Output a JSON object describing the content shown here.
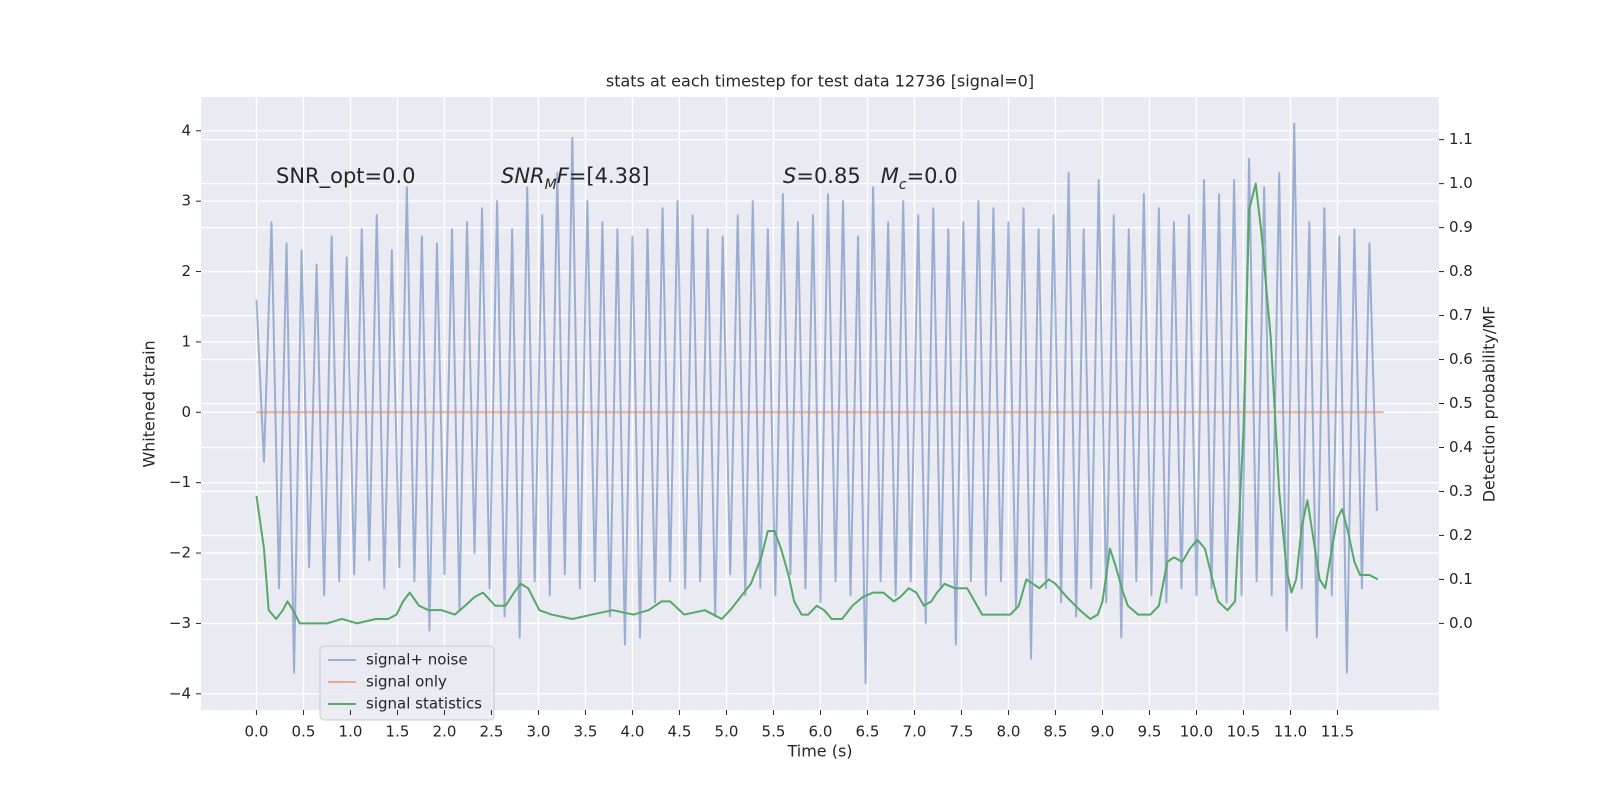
{
  "chart_data": {
    "type": "line",
    "title": "stats at each timestep for test data 12736 [signal=0]",
    "xlabel": "Time (s)",
    "ylabel": "Whitened strain",
    "y2label": "Detection probability/MF",
    "annotations": [
      [
        {
          "text": "SNR_opt=0.0"
        }
      ],
      [
        {
          "text": "SNR",
          "italic": true
        },
        {
          "text": "M",
          "italic": true,
          "sub": true
        },
        {
          "text": "F",
          "italic": true
        },
        {
          "text": "=[4.38]"
        }
      ],
      [
        {
          "text": "S",
          "italic": true
        },
        {
          "text": "=0.85   "
        },
        {
          "text": "M",
          "italic": true
        },
        {
          "text": "c",
          "italic": true,
          "sub": true
        },
        {
          "text": "=0.0"
        }
      ]
    ],
    "xlim": [
      -0.59,
      12.58
    ],
    "xticks": [
      {
        "value": 0,
        "label": "0.0"
      },
      0.5,
      {
        "value": 1,
        "label": "1.0"
      },
      1.5,
      {
        "value": 2,
        "label": "2.0"
      },
      2.5,
      {
        "value": 3,
        "label": "3.0"
      },
      3.5,
      {
        "value": 4,
        "label": "4.0"
      },
      4.5,
      {
        "value": 5,
        "label": "5.0"
      },
      5.5,
      {
        "value": 6,
        "label": "6.0"
      },
      6.5,
      {
        "value": 7,
        "label": "7.0"
      },
      7.5,
      {
        "value": 8,
        "label": "8.0"
      },
      8.5,
      {
        "value": 9,
        "label": "9.0"
      },
      9.5,
      {
        "value": 10,
        "label": "10.0"
      },
      10.5,
      {
        "value": 11,
        "label": "11.0"
      },
      11.5
    ],
    "ylim": [
      -4.23,
      4.48
    ],
    "yticks": [
      {
        "value": -4,
        "label": "−4"
      },
      {
        "value": -3,
        "label": "−3"
      },
      {
        "value": -2,
        "label": "−2"
      },
      {
        "value": -1,
        "label": "−1"
      },
      0,
      1,
      2,
      3,
      4
    ],
    "y2lim": [
      -0.197,
      1.197
    ],
    "y2ticks": [
      {
        "value": 0,
        "label": "0.0"
      },
      0.1,
      0.2,
      0.3,
      0.4,
      0.5,
      0.6,
      0.7,
      0.8,
      0.9,
      {
        "value": 1,
        "label": "1.0"
      },
      1.1
    ],
    "grid": true,
    "legend": "lower left",
    "series": [
      {
        "name": "signal+ noise",
        "color": "#4c72b0",
        "alpha": 0.5,
        "x": [
          0,
          0.08,
          0.16,
          0.24,
          0.32,
          0.4,
          0.48,
          0.56,
          0.64,
          0.72,
          0.8,
          0.88,
          0.96,
          1.04,
          1.12,
          1.2,
          1.28,
          1.36,
          1.44,
          1.52,
          1.6,
          1.68,
          1.76,
          1.84,
          1.92,
          2,
          2.08,
          2.16,
          2.24,
          2.32,
          2.4,
          2.48,
          2.56,
          2.64,
          2.72,
          2.8,
          2.88,
          2.96,
          3.04,
          3.12,
          3.2,
          3.28,
          3.36,
          3.44,
          3.52,
          3.6,
          3.68,
          3.76,
          3.84,
          3.92,
          4,
          4.08,
          4.16,
          4.24,
          4.32,
          4.4,
          4.48,
          4.56,
          4.64,
          4.72,
          4.8,
          4.88,
          4.96,
          5.04,
          5.12,
          5.2,
          5.28,
          5.36,
          5.44,
          5.52,
          5.6,
          5.68,
          5.76,
          5.84,
          5.92,
          6,
          6.08,
          6.16,
          6.24,
          6.32,
          6.4,
          6.48,
          6.56,
          6.64,
          6.72,
          6.8,
          6.88,
          6.96,
          7.04,
          7.12,
          7.2,
          7.28,
          7.36,
          7.44,
          7.52,
          7.6,
          7.68,
          7.76,
          7.84,
          7.92,
          8,
          8.08,
          8.16,
          8.24,
          8.32,
          8.4,
          8.48,
          8.56,
          8.64,
          8.72,
          8.8,
          8.88,
          8.96,
          9.04,
          9.12,
          9.2,
          9.28,
          9.36,
          9.44,
          9.52,
          9.6,
          9.68,
          9.76,
          9.84,
          9.92,
          10,
          10.08,
          10.16,
          10.24,
          10.32,
          10.4,
          10.48,
          10.56,
          10.64,
          10.72,
          10.8,
          10.88,
          10.96,
          11.04,
          11.12,
          11.2,
          11.28,
          11.36,
          11.44,
          11.52,
          11.6,
          11.68,
          11.76,
          11.84,
          11.92
        ],
        "values": [
          1.6,
          -0.7,
          2.7,
          -2.5,
          2.4,
          -3.7,
          2.3,
          -2.2,
          2.1,
          -2.6,
          2.5,
          -2.4,
          2.2,
          -2.3,
          2.6,
          -2.1,
          2.8,
          -2.5,
          2.3,
          -2.2,
          3.2,
          -2.4,
          2.5,
          -3.1,
          2.4,
          -2.3,
          2.6,
          -2.8,
          2.7,
          -2.0,
          2.9,
          -2.5,
          3.0,
          -2.9,
          2.6,
          -3.2,
          3.2,
          -2.4,
          2.8,
          -2.6,
          3.4,
          -2.3,
          3.9,
          -2.5,
          3.0,
          -2.4,
          2.7,
          -2.9,
          2.6,
          -3.3,
          2.5,
          -3.2,
          2.6,
          -2.7,
          2.9,
          -2.4,
          3.0,
          -2.5,
          2.8,
          -2.4,
          2.6,
          -2.9,
          2.5,
          -2.3,
          2.8,
          -2.6,
          3.0,
          -2.5,
          2.6,
          -2.6,
          3.1,
          -2.3,
          2.7,
          -2.5,
          2.8,
          -2.7,
          3.1,
          -2.4,
          3.0,
          -2.6,
          2.5,
          -3.85,
          3.2,
          -2.4,
          2.7,
          -2.6,
          3.0,
          -2.4,
          2.8,
          -3.0,
          2.9,
          -2.5,
          2.6,
          -3.3,
          2.7,
          -2.4,
          3.0,
          -2.6,
          2.9,
          -2.4,
          2.7,
          -2.8,
          2.9,
          -3.5,
          2.6,
          -2.5,
          2.8,
          -2.7,
          3.4,
          -2.9,
          2.6,
          -2.5,
          3.3,
          -2.7,
          2.8,
          -3.2,
          2.6,
          -2.4,
          3.1,
          -2.6,
          2.9,
          -2.7,
          2.7,
          -2.5,
          2.8,
          -2.6,
          3.3,
          -2.5,
          3.1,
          -2.7,
          3.3,
          -2.6,
          3.6,
          -2.4,
          3.2,
          -2.6,
          3.4,
          -3.1,
          4.1,
          -2.5,
          2.7,
          -3.2,
          2.9,
          -2.6,
          2.5,
          -3.7,
          2.6,
          -2.5,
          2.4,
          -1.4
        ]
      },
      {
        "name": "signal only",
        "color": "#dd8452",
        "alpha": 0.6,
        "x": [
          0,
          11.99
        ],
        "values": [
          0,
          0
        ]
      },
      {
        "name": "signal statistics",
        "color": "#55a868",
        "axis": "y2",
        "x": [
          0,
          0.08,
          0.13,
          0.21,
          0.28,
          0.33,
          0.39,
          0.46,
          0.59,
          0.75,
          0.91,
          1.07,
          1.27,
          1.4,
          1.49,
          1.56,
          1.63,
          1.73,
          1.83,
          1.97,
          2.11,
          2.22,
          2.32,
          2.41,
          2.54,
          2.65,
          2.74,
          2.81,
          2.89,
          3.01,
          3.14,
          3.36,
          3.57,
          3.79,
          4.01,
          4.17,
          4.31,
          4.4,
          4.55,
          4.77,
          4.95,
          5.04,
          5.15,
          5.26,
          5.37,
          5.44,
          5.51,
          5.58,
          5.66,
          5.72,
          5.8,
          5.87,
          5.96,
          6.04,
          6.12,
          6.23,
          6.34,
          6.45,
          6.56,
          6.67,
          6.78,
          6.85,
          6.94,
          7.02,
          7.1,
          7.18,
          7.24,
          7.32,
          7.43,
          7.56,
          7.64,
          7.72,
          7.86,
          8.02,
          8.11,
          8.19,
          8.26,
          8.33,
          8.43,
          8.5,
          8.62,
          8.76,
          8.87,
          8.95,
          9,
          9.08,
          9.14,
          9.22,
          9.27,
          9.38,
          9.51,
          9.6,
          9.69,
          9.76,
          9.85,
          9.93,
          10.01,
          10.09,
          10.17,
          10.23,
          10.33,
          10.41,
          10.5,
          10.56,
          10.63,
          10.69,
          10.79,
          10.88,
          10.96,
          11.01,
          11.06,
          11.12,
          11.18,
          11.26,
          11.31,
          11.37,
          11.44,
          11.5,
          11.55,
          11.61,
          11.68,
          11.74,
          11.84,
          11.93
        ],
        "values": [
          0.29,
          0.17,
          0.03,
          0.01,
          0.03,
          0.05,
          0.03,
          0,
          0,
          0,
          0.01,
          0,
          0.01,
          0.01,
          0.02,
          0.05,
          0.07,
          0.04,
          0.03,
          0.03,
          0.02,
          0.04,
          0.06,
          0.07,
          0.04,
          0.04,
          0.07,
          0.09,
          0.08,
          0.03,
          0.02,
          0.01,
          0.02,
          0.03,
          0.02,
          0.03,
          0.05,
          0.05,
          0.02,
          0.03,
          0.01,
          0.03,
          0.06,
          0.09,
          0.15,
          0.21,
          0.21,
          0.17,
          0.11,
          0.05,
          0.02,
          0.02,
          0.04,
          0.03,
          0.01,
          0.01,
          0.04,
          0.06,
          0.07,
          0.07,
          0.05,
          0.06,
          0.08,
          0.07,
          0.04,
          0.05,
          0.07,
          0.09,
          0.08,
          0.08,
          0.05,
          0.02,
          0.02,
          0.02,
          0.04,
          0.1,
          0.09,
          0.08,
          0.1,
          0.09,
          0.06,
          0.03,
          0.01,
          0.02,
          0.05,
          0.17,
          0.13,
          0.07,
          0.04,
          0.02,
          0.02,
          0.04,
          0.14,
          0.15,
          0.14,
          0.17,
          0.19,
          0.17,
          0.1,
          0.05,
          0.03,
          0.05,
          0.44,
          0.94,
          1,
          0.89,
          0.65,
          0.3,
          0.12,
          0.07,
          0.1,
          0.22,
          0.28,
          0.17,
          0.1,
          0.08,
          0.17,
          0.24,
          0.26,
          0.21,
          0.14,
          0.11,
          0.11,
          0.1
        ]
      }
    ]
  }
}
